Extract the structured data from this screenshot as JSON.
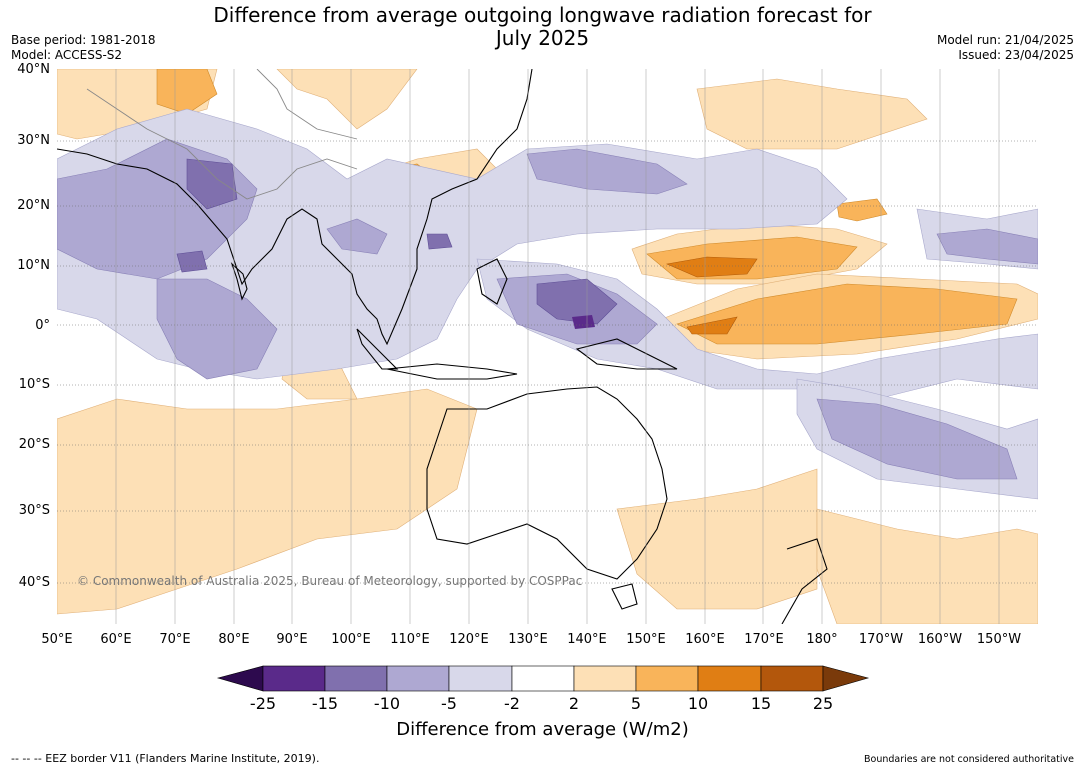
{
  "title_line1": "Difference from average outgoing longwave radiation forecast for",
  "title_line2": "July 2025",
  "meta": {
    "base_period": "Base period: 1981-2018",
    "model": "Model: ACCESS-S2",
    "model_run": "Model run: 21/04/2025",
    "issued": "Issued: 23/04/2025"
  },
  "lat_labels": [
    "40°N",
    "30°N",
    "20°N",
    "10°N",
    "0°",
    "10°S",
    "20°S",
    "30°S",
    "40°S"
  ],
  "lon_labels": [
    "50°E",
    "60°E",
    "70°E",
    "80°E",
    "90°E",
    "100°E",
    "110°E",
    "120°E",
    "130°E",
    "140°E",
    "150°E",
    "160°E",
    "170°E",
    "180°",
    "170°W",
    "160°W",
    "150°W"
  ],
  "copyright": "© Commonwealth of Australia 2025, Bureau of Meteorology, supported by COSPPac",
  "colorbar": {
    "labels": [
      "-25",
      "-15",
      "-10",
      "-5",
      "-2",
      "2",
      "5",
      "10",
      "15",
      "25"
    ],
    "colors": [
      "#2d0a4e",
      "#5a2a8a",
      "#8070ae",
      "#aea8d2",
      "#d8d8ea",
      "#ffffff",
      "#fde0b6",
      "#f9b45a",
      "#e07e14",
      "#b3570c",
      "#7a3a0a"
    ],
    "title": "Difference from average (W/m2)"
  },
  "footer": {
    "eez": "--  --  -- EEZ border V11 (Flanders Marine Institute, 2019).",
    "disclaimer": "Boundaries are not considered authoritative"
  }
}
